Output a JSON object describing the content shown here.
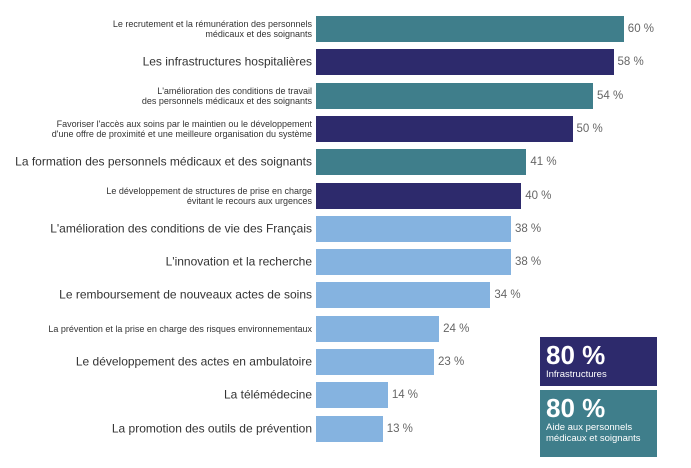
{
  "chart_data": {
    "type": "bar",
    "orientation": "horizontal",
    "categories": [
      "Le recrutement et la rémunération des personnels\nmédicaux et des soignants",
      "Les infrastructures hospitalières",
      "L'amélioration des conditions de travail\ndes personnels médicaux et des soignants",
      "Favoriser l'accès aux soins par le maintien ou le développement\nd'une offre de proximité et une meilleure organisation du système",
      "La formation des personnels médicaux et des soignants",
      "Le développement de structures de prise en charge\névitant le recours aux urgences",
      "L'amélioration des conditions de vie des Français",
      "L'innovation et la recherche",
      "Le remboursement de nouveaux actes de soins",
      "La prévention et la prise en charge des risques environnementaux",
      "Le développement des actes en ambulatoire",
      "La télémédecine",
      "La promotion des outils de prévention"
    ],
    "values": [
      60,
      58,
      54,
      50,
      41,
      40,
      38,
      38,
      34,
      24,
      23,
      14,
      13
    ],
    "value_labels": [
      "60 %",
      "58 %",
      "54 %",
      "50 %",
      "41 %",
      "40 %",
      "38 %",
      "38 %",
      "34 %",
      "24 %",
      "23 %",
      "14 %",
      "13 %"
    ],
    "colors": [
      "#3f7e8b",
      "#2d2a6c",
      "#3f7e8b",
      "#2d2a6c",
      "#3f7e8b",
      "#2d2a6c",
      "#85b3e0",
      "#85b3e0",
      "#85b3e0",
      "#85b3e0",
      "#85b3e0",
      "#85b3e0",
      "#85b3e0"
    ],
    "callouts": [
      {
        "value_label": "80 %",
        "label": "Infrastructures",
        "color": "#2d2a6c"
      },
      {
        "value_label": "80 %",
        "label": "Aide aux personnels\nmédicaux et soignants",
        "color": "#3f7e8b"
      }
    ]
  }
}
